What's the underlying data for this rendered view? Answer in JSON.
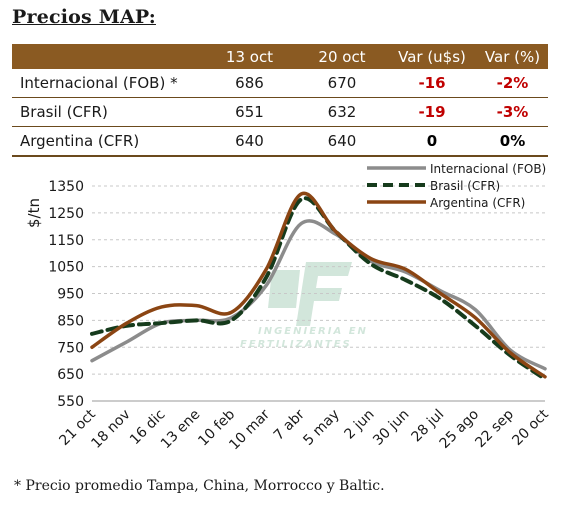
{
  "title": "Precios MAP:",
  "table": {
    "headers": [
      "",
      "13 oct",
      "20 oct",
      "Var (u$s)",
      "Var (%)"
    ],
    "rows": [
      {
        "name": "Internacional (FOB) *",
        "v13": "686",
        "v20": "670",
        "var_abs": "-16",
        "var_pct": "-2%"
      },
      {
        "name": "Brasil (CFR)",
        "v13": "651",
        "v20": "632",
        "var_abs": "-19",
        "var_pct": "-3%"
      },
      {
        "name": "Argentina (CFR)",
        "v13": "640",
        "v20": "640",
        "var_abs": "0",
        "var_pct": "0%"
      }
    ]
  },
  "colors": {
    "header_bg": "#8a5a22",
    "negative": "#c00000",
    "internacional": "#8c8c8c",
    "brasil": "#163b1c",
    "argentina": "#8b4513"
  },
  "watermark": {
    "text_line1": "INGENIERIA EN",
    "text_line2": "FERTILIZANTES",
    "logo": "IF-logo"
  },
  "chart_data": {
    "type": "line",
    "ylabel": "$/tn",
    "xlabel": "",
    "ylim": [
      550,
      1350
    ],
    "yticks": [
      1350,
      1250,
      1150,
      1050,
      950,
      850,
      750,
      650,
      550
    ],
    "categories": [
      "21 oct",
      "18 nov",
      "16 dic",
      "13 ene",
      "10 feb",
      "10 mar",
      "7 abr",
      "5 may",
      "2 jun",
      "30 jun",
      "28 jul",
      "25 ago",
      "22 sep",
      "20 oct"
    ],
    "grid": "horizontal dashed",
    "legend_position": "top-right",
    "series": [
      {
        "name": "Internacional (FOB)",
        "style": "solid",
        "values": [
          700,
          770,
          840,
          850,
          860,
          980,
          1210,
          1170,
          1070,
          1030,
          960,
          890,
          740,
          670
        ]
      },
      {
        "name": "Brasil (CFR)",
        "style": "dashed",
        "values": [
          800,
          830,
          840,
          850,
          850,
          1010,
          1300,
          1180,
          1060,
          1000,
          930,
          830,
          720,
          632
        ]
      },
      {
        "name": "Argentina (CFR)",
        "style": "solid",
        "values": [
          750,
          840,
          900,
          905,
          880,
          1040,
          1320,
          1180,
          1080,
          1040,
          950,
          860,
          730,
          640
        ]
      }
    ]
  },
  "footnote": "* Precio promedio Tampa, China, Morrocco y Baltic."
}
